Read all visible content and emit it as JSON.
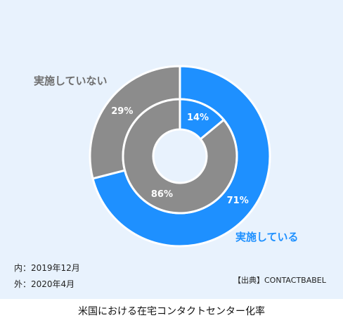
{
  "chart_data": [
    {
      "type": "pie",
      "ring": "outer",
      "period": "2020年4月",
      "categories": [
        "実施している",
        "実施していない"
      ],
      "values": [
        71,
        29
      ],
      "unit": "%",
      "colors": [
        "#1e90ff",
        "#8c8c8c"
      ]
    },
    {
      "type": "pie",
      "ring": "inner",
      "period": "2019年12月",
      "categories": [
        "実施している",
        "実施していない"
      ],
      "values": [
        14,
        86
      ],
      "unit": "%",
      "colors": [
        "#1e90ff",
        "#8c8c8c"
      ]
    }
  ],
  "legend": {
    "not_implemented": "実施していない",
    "implemented": "実施している"
  },
  "notes": {
    "inner": "内：2019年12月",
    "outer": "外：2020年4月"
  },
  "source": "【出典】CONTACTBABEL",
  "caption": "米国における在宅コンタクトセンター化率"
}
